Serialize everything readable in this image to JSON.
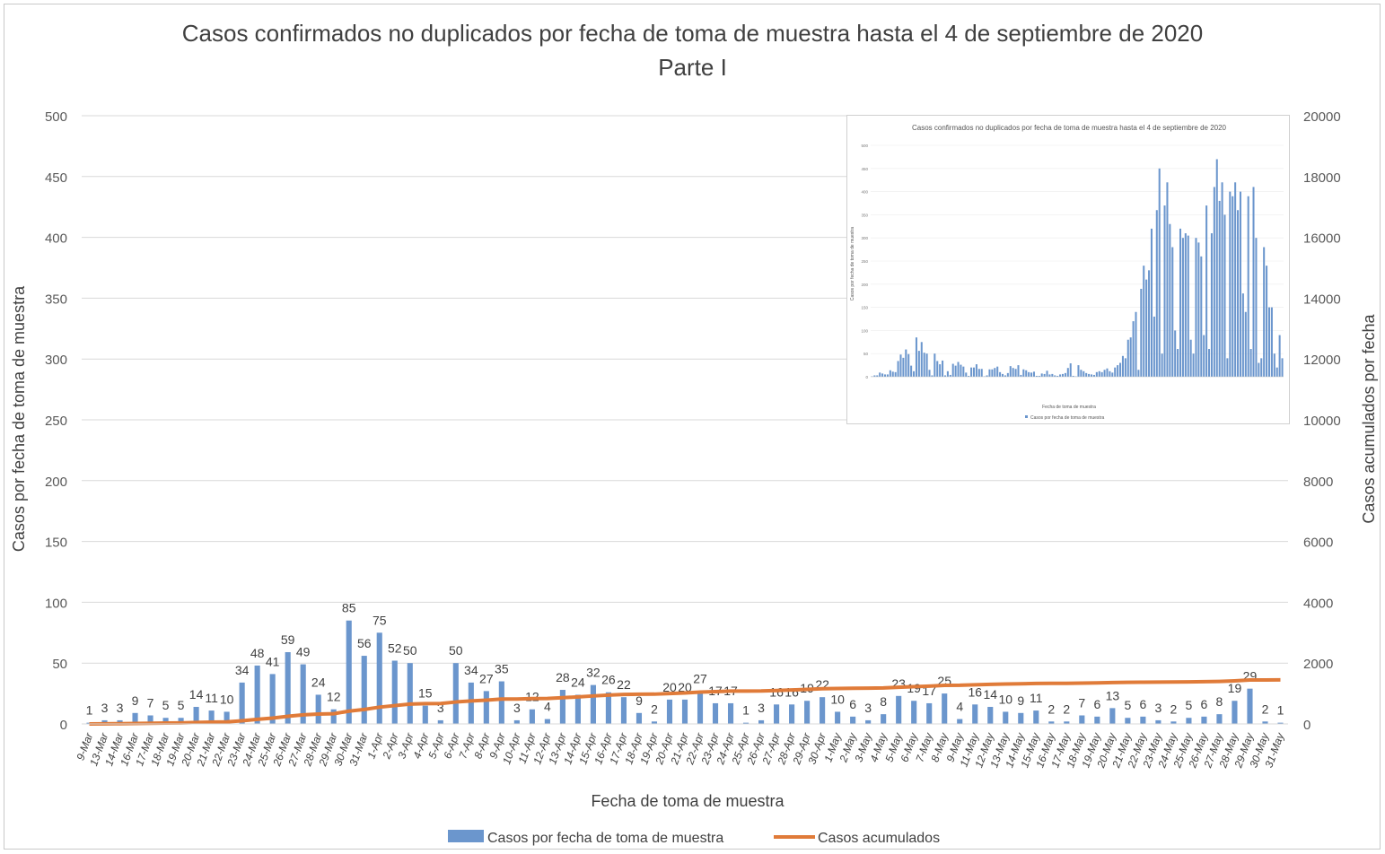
{
  "chart_data": {
    "type": "bar",
    "title": "Casos confirmados no duplicados por fecha de toma de muestra hasta el 4 de septiembre de 2020",
    "subtitle": "Parte I",
    "xlabel": "Fecha de toma de muestra",
    "ylabel": "Casos por fecha de toma de muestra",
    "y2label": "Casos acumulados por fecha",
    "ylim": [
      0,
      500
    ],
    "y2lim": [
      0,
      20000
    ],
    "yticks": [
      "0",
      "50",
      "100",
      "150",
      "200",
      "250",
      "300",
      "350",
      "400",
      "450",
      "500"
    ],
    "y2ticks": [
      "0",
      "2000",
      "4000",
      "6000",
      "8000",
      "10000",
      "12000",
      "14000",
      "16000",
      "18000",
      "20000"
    ],
    "grid": true,
    "legend_position": "bottom",
    "categories": [
      "9-Mar",
      "13-Mar",
      "14-Mar",
      "16-Mar",
      "17-Mar",
      "18-Mar",
      "19-Mar",
      "20-Mar",
      "21-Mar",
      "22-Mar",
      "23-Mar",
      "24-Mar",
      "25-Mar",
      "26-Mar",
      "27-Mar",
      "28-Mar",
      "29-Mar",
      "30-Mar",
      "31-Mar",
      "1-Apr",
      "2-Apr",
      "3-Apr",
      "4-Apr",
      "5-Apr",
      "6-Apr",
      "7-Apr",
      "8-Apr",
      "9-Apr",
      "10-Apr",
      "11-Apr",
      "12-Apr",
      "13-Apr",
      "14-Apr",
      "15-Apr",
      "16-Apr",
      "17-Apr",
      "18-Apr",
      "19-Apr",
      "20-Apr",
      "21-Apr",
      "22-Apr",
      "23-Apr",
      "24-Apr",
      "25-Apr",
      "26-Apr",
      "27-Apr",
      "28-Apr",
      "29-Apr",
      "30-Apr",
      "1-May",
      "2-May",
      "3-May",
      "4-May",
      "5-May",
      "6-May",
      "7-May",
      "8-May",
      "9-May",
      "11-May",
      "12-May",
      "13-May",
      "14-May",
      "15-May",
      "16-May",
      "17-May",
      "18-May",
      "19-May",
      "20-May",
      "21-May",
      "22-May",
      "23-May",
      "24-May",
      "25-May",
      "26-May",
      "27-May",
      "28-May",
      "29-May",
      "30-May",
      "31-May"
    ],
    "series": [
      {
        "name": "Casos por fecha de toma de muestra",
        "type": "bar",
        "color": "#6b96cd",
        "values": [
          1,
          3,
          3,
          9,
          7,
          5,
          5,
          14,
          11,
          10,
          34,
          48,
          41,
          59,
          49,
          24,
          12,
          85,
          56,
          75,
          52,
          50,
          15,
          3,
          50,
          34,
          27,
          35,
          3,
          12,
          4,
          28,
          24,
          32,
          26,
          22,
          9,
          2,
          20,
          20,
          27,
          17,
          17,
          1,
          3,
          16,
          16,
          19,
          22,
          10,
          6,
          3,
          8,
          23,
          19,
          17,
          25,
          4,
          16,
          14,
          10,
          9,
          11,
          2,
          2,
          7,
          6,
          13,
          5,
          6,
          3,
          2,
          5,
          6,
          8,
          19,
          29,
          2,
          1
        ]
      },
      {
        "name": "Casos acumulados",
        "type": "line",
        "axis": "right",
        "color": "#e07b39",
        "values": [
          1,
          4,
          7,
          16,
          23,
          28,
          33,
          47,
          58,
          68,
          102,
          150,
          191,
          250,
          299,
          323,
          335,
          420,
          476,
          551,
          603,
          653,
          668,
          671,
          721,
          755,
          782,
          817,
          820,
          832,
          836,
          864,
          888,
          920,
          946,
          968,
          977,
          979,
          999,
          1019,
          1046,
          1063,
          1080,
          1081,
          1084,
          1100,
          1116,
          1135,
          1157,
          1167,
          1173,
          1176,
          1184,
          1207,
          1226,
          1243,
          1268,
          1272,
          1288,
          1302,
          1312,
          1321,
          1332,
          1334,
          1336,
          1343,
          1349,
          1362,
          1367,
          1373,
          1376,
          1378,
          1383,
          1389,
          1397,
          1416,
          1445,
          1447,
          1448
        ]
      }
    ]
  },
  "inset": {
    "title": "Casos confirmados no duplicados por fecha de toma de muestra hasta el 4 de septiembre de 2020",
    "xlabel": "Fecha de toma de muestra",
    "ylabel": "Casos por fecha de toma de muestra",
    "legend": "Casos por fecha de toma de muestra",
    "yticks": [
      "0",
      "50",
      "100",
      "150",
      "200",
      "250",
      "300",
      "350",
      "400",
      "450",
      "500"
    ],
    "ylim": [
      0,
      500
    ],
    "color": "#6b96cd",
    "values": [
      1,
      3,
      3,
      9,
      7,
      5,
      5,
      14,
      11,
      10,
      34,
      48,
      41,
      59,
      49,
      24,
      12,
      85,
      56,
      75,
      52,
      50,
      15,
      3,
      50,
      34,
      27,
      35,
      3,
      12,
      4,
      28,
      24,
      32,
      26,
      22,
      9,
      2,
      20,
      20,
      27,
      17,
      17,
      1,
      3,
      16,
      16,
      19,
      22,
      10,
      6,
      3,
      8,
      23,
      19,
      17,
      25,
      4,
      16,
      14,
      10,
      9,
      11,
      2,
      2,
      7,
      6,
      13,
      5,
      6,
      3,
      2,
      5,
      6,
      8,
      19,
      29,
      2,
      1,
      25,
      15,
      12,
      8,
      6,
      5,
      4,
      10,
      12,
      10,
      15,
      18,
      12,
      9,
      20,
      25,
      30,
      45,
      40,
      80,
      85,
      120,
      140,
      15,
      190,
      240,
      210,
      230,
      320,
      130,
      360,
      450,
      50,
      370,
      420,
      330,
      280,
      100,
      60,
      320,
      300,
      310,
      305,
      80,
      50,
      300,
      290,
      260,
      90,
      370,
      60,
      310,
      410,
      470,
      380,
      420,
      350,
      40,
      400,
      390,
      420,
      360,
      400,
      180,
      140,
      390,
      60,
      410,
      300,
      30,
      40,
      280,
      240,
      150,
      150,
      50,
      20,
      90,
      40
    ]
  }
}
